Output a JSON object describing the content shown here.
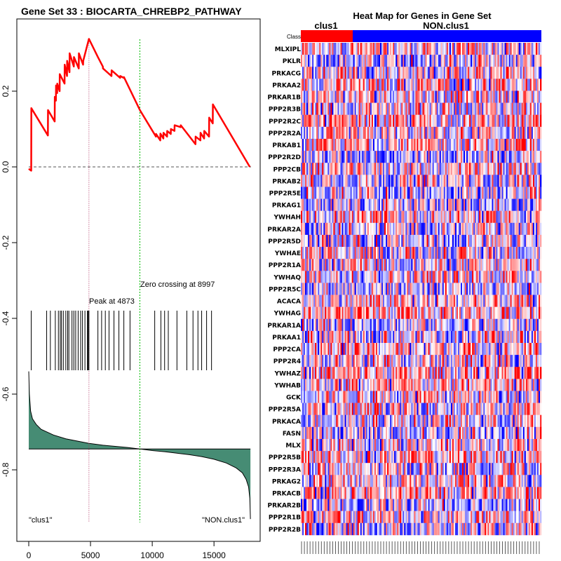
{
  "left_title": "Gene Set  33 : BIOCARTA_CHREBP2_PATHWAY",
  "right_title": "Heat Map for Genes in Gene Set",
  "colors": {
    "es_line": "#ff0000",
    "zero_crossing": "#00bb00",
    "peak": "#b03060",
    "ranked_fill": "#468c74",
    "class_pos": "#ff0000",
    "class_neg": "#0000ff"
  },
  "chart_data": [
    {
      "type": "line",
      "name": "running-enrichment-score",
      "xlim": [
        0,
        18000
      ],
      "ylim": [
        -0.95,
        0.35
      ],
      "x_ticks": [
        0,
        5000,
        10000,
        15000
      ],
      "y_ticks": [
        0.2,
        0.0,
        -0.2,
        -0.4,
        -0.6,
        -0.8
      ],
      "y_tick_labels": [
        "0.2",
        "0.0",
        "-0.2",
        "-0.4",
        "-0.6",
        "-0.8"
      ],
      "x_tick_labels": [
        "0",
        "5000",
        "10000",
        "15000"
      ],
      "series": [
        {
          "name": "enrichment_score",
          "x": [
            0,
            200,
            210,
            1550,
            1560,
            2100,
            2110,
            2200,
            2210,
            2300,
            2310,
            2500,
            2510,
            2900,
            2910,
            3100,
            3110,
            3300,
            3310,
            3650,
            3660,
            4050,
            4060,
            4400,
            4410,
            4873,
            5600,
            6000,
            6010,
            6700,
            6710,
            7400,
            7410,
            7700,
            7710,
            9000,
            10300,
            10310,
            10650,
            10660,
            10900,
            10910,
            11200,
            11210,
            11500,
            11510,
            11800,
            11810,
            12300,
            12310,
            13500,
            13510,
            13900,
            13910,
            14200,
            14210,
            14600,
            14610,
            14900,
            14910,
            17900
          ],
          "y": [
            -0.005,
            -0.01,
            0.155,
            0.083,
            0.15,
            0.12,
            0.185,
            0.175,
            0.215,
            0.195,
            0.22,
            0.2,
            0.245,
            0.22,
            0.27,
            0.24,
            0.28,
            0.25,
            0.3,
            0.265,
            0.29,
            0.26,
            0.3,
            0.27,
            0.28,
            0.338,
            0.29,
            0.265,
            0.26,
            0.24,
            0.255,
            0.235,
            0.24,
            0.235,
            0.237,
            0.15,
            0.08,
            0.087,
            0.07,
            0.088,
            0.075,
            0.09,
            0.08,
            0.095,
            0.087,
            0.1,
            0.095,
            0.11,
            0.105,
            0.11,
            0.06,
            0.08,
            0.07,
            0.09,
            0.075,
            0.095,
            0.08,
            0.13,
            0.115,
            0.165,
            0.0
          ]
        }
      ],
      "peak_label": "Peak at 4873",
      "peak_x": 4873,
      "zero_crossing_label": "Zero crossing at 8997",
      "zero_crossing_x": 8997,
      "hit_positions": [
        200,
        1450,
        1750,
        2150,
        2400,
        2550,
        2650,
        2800,
        3000,
        3150,
        3250,
        3500,
        3650,
        3800,
        4000,
        4200,
        4350,
        4550,
        4750,
        4780,
        4810,
        4873,
        5600,
        5900,
        6200,
        6500,
        6900,
        7300,
        7700,
        8200,
        10200,
        10700,
        11000,
        11300,
        12000,
        12800,
        13300,
        13700,
        14000,
        14400,
        14800
      ],
      "ranked_metric": {
        "baseline": -0.745,
        "x": [
          0,
          50,
          150,
          300,
          600,
          1000,
          2000,
          3000,
          4873,
          6000,
          7000,
          8000,
          9000,
          10000,
          11000,
          12000,
          13000,
          14000,
          15000,
          16000,
          16800,
          17300,
          17600,
          17800,
          17900,
          17950
        ],
        "y": [
          -0.54,
          -0.6,
          -0.645,
          -0.665,
          -0.68,
          -0.693,
          -0.708,
          -0.718,
          -0.73,
          -0.735,
          -0.738,
          -0.741,
          -0.745,
          -0.749,
          -0.752,
          -0.756,
          -0.76,
          -0.765,
          -0.772,
          -0.782,
          -0.795,
          -0.808,
          -0.825,
          -0.845,
          -0.875,
          -0.93
        ]
      },
      "corner_left_label": "\"clus1\"",
      "corner_right_label": "\"NON.clus1\""
    },
    {
      "type": "heatmap",
      "name": "gene-heatmap",
      "class_label": "Class",
      "class_groups": [
        {
          "name": "clus1",
          "fraction": 0.21
        },
        {
          "name": "NON.clus1",
          "fraction": 0.79
        }
      ],
      "rows": [
        "MLXIPL",
        "PKLR",
        "PRKACG",
        "PRKAA2",
        "PRKAR1B",
        "PPP2R3B",
        "PPP2R2C",
        "PPP2R2A",
        "PRKAB1",
        "PPP2R2D",
        "PPP2CB",
        "PRKAB2",
        "PPP2R5E",
        "PRKAG1",
        "YWHAH",
        "PRKAR2A",
        "PPP2R5D",
        "YWHAE",
        "PPP2R1A",
        "YWHAQ",
        "PPP2R5C",
        "ACACA",
        "YWHAG",
        "PRKAR1A",
        "PRKAA1",
        "PPP2CA",
        "PPP2R4",
        "YWHAZ",
        "YWHAB",
        "GCK",
        "PPP2R5A",
        "PRKACA",
        "FASN",
        "MLX",
        "PPP2R5B",
        "PPP2R3A",
        "PRKAG2",
        "PRKACB",
        "PRKAR2B",
        "PPP2R1B",
        "PPP2R2B"
      ],
      "columns": 170
    }
  ]
}
